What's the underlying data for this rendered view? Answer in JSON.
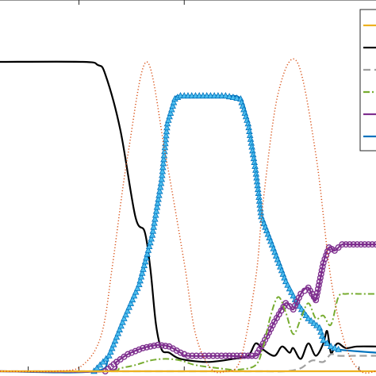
{
  "chart_data": {
    "type": "line",
    "title": "",
    "xlabel": "",
    "ylabel": "",
    "xlim": [
      0,
      10
    ],
    "ylim": [
      0,
      1
    ],
    "grid": false,
    "legend_position": "top-right",
    "legend_entries": [
      "",
      "",
      "",
      "",
      "",
      ""
    ],
    "colors": {
      "orange": "#EDB120",
      "black": "#000000",
      "gray": "#A0A0A0",
      "green": "#77AC30",
      "purple": "#7E2F8E",
      "blue": "#0072BD",
      "blue_marker": "#4DBEEE",
      "dotted": "#D95319"
    },
    "series": [
      {
        "key": "black",
        "color": "black",
        "style": "solid",
        "marker": "none",
        "x": [
          0,
          2.2,
          2.6,
          2.8,
          3.2,
          3.6,
          3.85,
          4.0,
          4.15,
          4.3,
          4.5,
          4.8,
          5.5,
          6.2,
          6.6,
          6.8,
          7.0,
          7.3,
          7.5,
          7.7,
          7.8,
          8.0,
          8.2,
          8.4,
          8.6,
          8.7,
          8.8,
          8.9,
          9.0,
          9.2,
          9.5,
          10
        ],
        "y": [
          1.0,
          1.0,
          0.99,
          0.96,
          0.78,
          0.5,
          0.45,
          0.33,
          0.15,
          0.07,
          0.06,
          0.04,
          0.03,
          0.04,
          0.05,
          0.09,
          0.07,
          0.05,
          0.08,
          0.06,
          0.075,
          0.04,
          0.09,
          0.05,
          0.09,
          0.13,
          0.06,
          0.08,
          0.09,
          0.075,
          0.08,
          0.08
        ]
      },
      {
        "key": "blue",
        "color": "blue",
        "style": "solid",
        "marker": "triangle",
        "x": [
          0,
          2.5,
          2.9,
          3.3,
          3.7,
          4.05,
          4.3,
          4.45,
          4.65,
          4.8,
          5.2,
          6.0,
          6.4,
          6.6,
          6.8,
          6.95,
          7.2,
          7.6,
          7.9,
          8.2,
          8.5,
          8.6,
          8.8,
          9.0,
          10
        ],
        "y": [
          0.0,
          0.0,
          0.05,
          0.17,
          0.28,
          0.44,
          0.62,
          0.8,
          0.88,
          0.89,
          0.89,
          0.89,
          0.88,
          0.8,
          0.65,
          0.5,
          0.42,
          0.29,
          0.22,
          0.17,
          0.14,
          0.1,
          0.08,
          0.07,
          0.06
        ]
      },
      {
        "key": "purple",
        "color": "purple",
        "style": "solid",
        "marker": "circle",
        "x": [
          0,
          2.8,
          3.1,
          3.4,
          3.8,
          4.2,
          4.5,
          4.8,
          5.0,
          6.0,
          6.8,
          7.0,
          7.3,
          7.6,
          7.8,
          8.0,
          8.2,
          8.4,
          8.6,
          8.75,
          8.9,
          9.1,
          9.3,
          9.6,
          10
        ],
        "y": [
          0.0,
          0.0,
          0.03,
          0.055,
          0.075,
          0.085,
          0.08,
          0.06,
          0.05,
          0.05,
          0.05,
          0.09,
          0.16,
          0.22,
          0.2,
          0.25,
          0.27,
          0.23,
          0.35,
          0.4,
          0.39,
          0.41,
          0.41,
          0.41,
          0.41
        ]
      },
      {
        "key": "green",
        "color": "green",
        "style": "dashdot",
        "marker": "none",
        "x": [
          0,
          2.8,
          3.2,
          3.6,
          4.0,
          4.4,
          4.8,
          5.2,
          5.8,
          6.3,
          6.8,
          7.0,
          7.2,
          7.4,
          7.6,
          7.8,
          8.0,
          8.2,
          8.4,
          8.6,
          8.8,
          9.0,
          9.2,
          9.6,
          10
        ],
        "y": [
          0.0,
          0.0,
          0.01,
          0.02,
          0.035,
          0.04,
          0.035,
          0.02,
          0.01,
          0.005,
          0.02,
          0.08,
          0.18,
          0.24,
          0.19,
          0.12,
          0.17,
          0.22,
          0.17,
          0.18,
          0.15,
          0.24,
          0.25,
          0.25,
          0.25
        ]
      },
      {
        "key": "gray",
        "color": "gray",
        "style": "dashed",
        "marker": "none",
        "x": [
          0,
          4.0,
          6.0,
          7.0,
          7.6,
          8.0,
          8.3,
          8.6,
          8.8,
          9.0,
          9.5,
          10
        ],
        "y": [
          0.0,
          0.0,
          0.0,
          0.0,
          0.0,
          0.01,
          0.035,
          0.03,
          0.055,
          0.05,
          0.05,
          0.05
        ]
      },
      {
        "key": "orange",
        "color": "orange",
        "style": "solid",
        "marker": "none",
        "x": [
          0,
          3.0,
          5.0,
          7.0,
          10
        ],
        "y": [
          0.0,
          0.0,
          0.0,
          0.0,
          0.0
        ]
      },
      {
        "key": "dotted",
        "color": "dotted",
        "style": "dotted",
        "marker": "none",
        "x": [
          0,
          1.5,
          2.2,
          2.7,
          3.0,
          3.4,
          3.9,
          4.4,
          4.9,
          5.2,
          5.6,
          6.0,
          6.4,
          6.8,
          7.0,
          7.4,
          7.9,
          8.4,
          8.8,
          9.2,
          9.6,
          10
        ],
        "y": [
          0.0,
          0.0,
          0.02,
          0.12,
          0.35,
          0.7,
          1.0,
          0.7,
          0.35,
          0.12,
          0.01,
          0.0,
          0.04,
          0.3,
          0.55,
          0.9,
          1.0,
          0.7,
          0.3,
          0.08,
          0.0,
          0.0
        ]
      }
    ]
  }
}
